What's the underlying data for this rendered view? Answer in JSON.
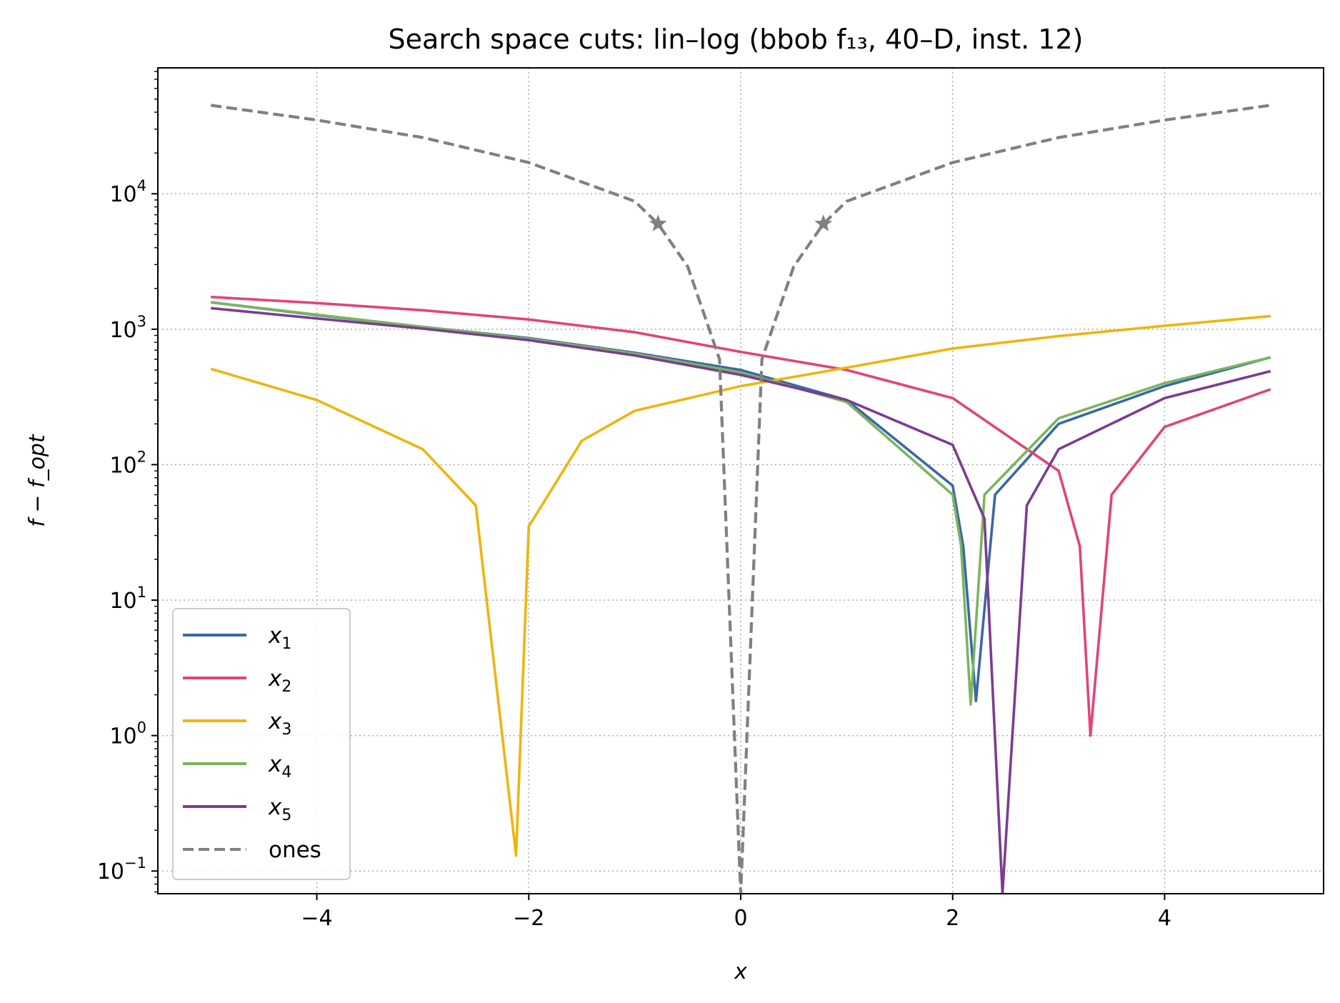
{
  "chart_data": {
    "type": "line",
    "title": "Search space cuts: lin–log (bbob f₁₃, 40–D, inst. 12)",
    "xlabel": "x",
    "ylabel": "f − f_opt",
    "xscale": "linear",
    "yscale": "log",
    "xlim": [
      -5.5,
      5.5
    ],
    "ylim": [
      0.068,
      85000
    ],
    "xticks": [
      -4,
      -2,
      0,
      2,
      4
    ],
    "xtick_labels": [
      "−4",
      "−2",
      "0",
      "2",
      "4"
    ],
    "yticks": [
      0.1,
      1,
      10,
      100,
      1000,
      10000
    ],
    "ytick_labels": [
      {
        "base": "10",
        "exp": "−1"
      },
      {
        "base": "10",
        "exp": "0"
      },
      {
        "base": "10",
        "exp": "1"
      },
      {
        "base": "10",
        "exp": "2"
      },
      {
        "base": "10",
        "exp": "3"
      },
      {
        "base": "10",
        "exp": "4"
      }
    ],
    "grid": true,
    "legend_position": "lower-left",
    "series": [
      {
        "name": "x₁",
        "color": "#3b67a8",
        "style": "solid",
        "x_min": 2.22,
        "floor": 1.8,
        "x": [
          -5,
          -4,
          -3,
          -2,
          -1,
          0,
          1,
          2,
          2.1,
          2.22,
          2.4,
          3,
          4,
          5
        ],
        "y": [
          1580,
          1270,
          1040,
          860,
          670,
          500,
          300,
          70,
          25,
          1.8,
          60,
          200,
          380,
          620
        ]
      },
      {
        "name": "x₂",
        "color": "#e2437a",
        "style": "solid",
        "x_min": 3.3,
        "floor": 1.0,
        "x": [
          -5,
          -4,
          -3,
          -2,
          -1,
          0,
          1,
          2,
          3,
          3.2,
          3.3,
          3.5,
          4,
          5
        ],
        "y": [
          1730,
          1560,
          1380,
          1180,
          950,
          680,
          500,
          310,
          90,
          25,
          1.0,
          60,
          190,
          360
        ]
      },
      {
        "name": "x₃",
        "color": "#efb40f",
        "style": "solid",
        "x_min": -2.12,
        "floor": 0.13,
        "x": [
          -5,
          -4,
          -3,
          -2.5,
          -2.12,
          -2,
          -1.5,
          -1,
          0,
          1,
          2,
          3,
          4,
          5
        ],
        "y": [
          510,
          300,
          130,
          50,
          0.13,
          35,
          150,
          250,
          380,
          520,
          720,
          890,
          1060,
          1250
        ]
      },
      {
        "name": "x₄",
        "color": "#7ab55c",
        "style": "solid",
        "x_min": 2.17,
        "floor": 1.7,
        "x": [
          -5,
          -4,
          -3,
          -2,
          -1,
          0,
          1,
          2,
          2.08,
          2.17,
          2.3,
          3,
          4,
          5
        ],
        "y": [
          1580,
          1280,
          1040,
          850,
          660,
          480,
          290,
          60,
          25,
          1.7,
          60,
          220,
          400,
          620
        ]
      },
      {
        "name": "x₅",
        "color": "#7b3d91",
        "style": "solid",
        "x_min": 2.47,
        "floor": 0.068,
        "x": [
          -5,
          -4,
          -3,
          -2,
          -1,
          0,
          1,
          2,
          2.3,
          2.47,
          2.7,
          3,
          4,
          5
        ],
        "y": [
          1430,
          1200,
          1010,
          830,
          640,
          460,
          300,
          140,
          40,
          0.068,
          50,
          130,
          310,
          490
        ]
      },
      {
        "name": "ones",
        "color": "#808080",
        "style": "dashed",
        "x_min": 0,
        "floor": 0.068,
        "x": [
          -5,
          -4,
          -3,
          -2,
          -1,
          -0.78,
          -0.5,
          -0.2,
          0,
          0.2,
          0.5,
          0.78,
          1,
          2,
          3,
          4,
          5
        ],
        "y": [
          45000,
          35000,
          26000,
          17000,
          8800,
          6000,
          2900,
          600,
          0.068,
          600,
          2900,
          6000,
          8800,
          17000,
          26000,
          35000,
          45000
        ]
      }
    ],
    "markers": [
      {
        "series": "ones",
        "x": -0.78,
        "y": 6000,
        "shape": "star"
      },
      {
        "series": "ones",
        "x": 0.78,
        "y": 6000,
        "shape": "star"
      }
    ]
  }
}
